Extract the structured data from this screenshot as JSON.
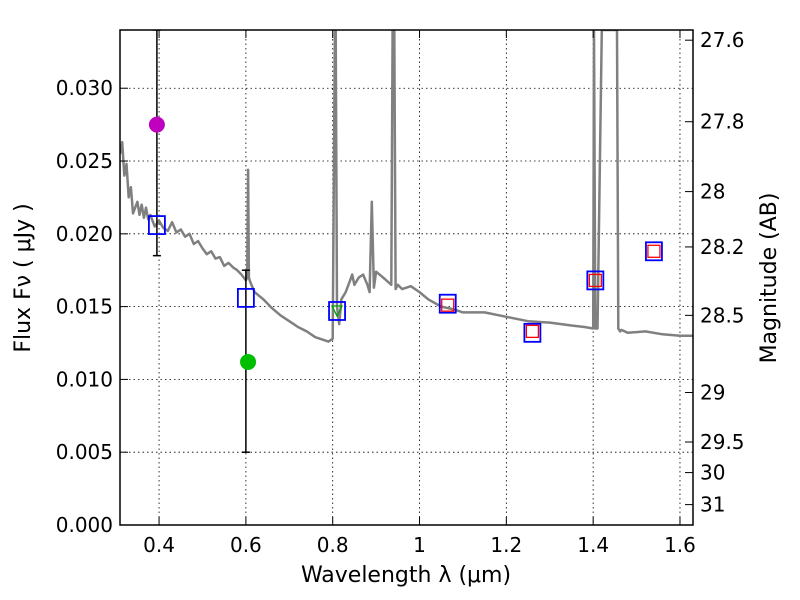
{
  "chart_data": {
    "type": "scatter",
    "xlabel": "Wavelength  λ (μm)",
    "ylabel": "Flux  Fν  ( μJy )",
    "y2label": "Magnitude (AB)",
    "xlim": [
      0.31,
      1.63
    ],
    "ylim": [
      0.0,
      0.034
    ],
    "x_ticks": [
      0.4,
      0.6,
      0.8,
      1.0,
      1.2,
      1.4,
      1.6
    ],
    "x_tick_labels": [
      "0.4",
      "0.6",
      "0.8",
      "1",
      "1.2",
      "1.4",
      "1.6"
    ],
    "y_ticks": [
      0.0,
      0.005,
      0.01,
      0.015,
      0.02,
      0.025,
      0.03
    ],
    "y_tick_labels": [
      "0.000",
      "0.005",
      "0.010",
      "0.015",
      "0.020",
      "0.025",
      "0.030"
    ],
    "y2_ticks": [
      {
        "label": "27.6",
        "flux": 0.0333
      },
      {
        "label": "27.8",
        "flux": 0.0277
      },
      {
        "label": "28",
        "flux": 0.0229
      },
      {
        "label": "28.2",
        "flux": 0.0191
      },
      {
        "label": "28.5",
        "flux": 0.0144
      },
      {
        "label": "29",
        "flux": 0.0091
      },
      {
        "label": "29.5",
        "flux": 0.0057
      },
      {
        "label": "30",
        "flux": 0.0036
      },
      {
        "label": "31",
        "flux": 0.0014
      }
    ],
    "grid": true,
    "colors": {
      "model": "#808080",
      "observed_square": "#0000ff",
      "model_square": "#ff0000",
      "magenta_point": "#bf00bf",
      "green_point": "#00bf00",
      "green_triangle": "#00a000",
      "errorbar": "#000000"
    },
    "series": [
      {
        "name": "model SED",
        "style": "line",
        "x": [
          0.31,
          0.315,
          0.32,
          0.325,
          0.33,
          0.335,
          0.34,
          0.345,
          0.35,
          0.355,
          0.36,
          0.365,
          0.37,
          0.375,
          0.38,
          0.39,
          0.4,
          0.41,
          0.42,
          0.43,
          0.44,
          0.45,
          0.46,
          0.47,
          0.48,
          0.49,
          0.5,
          0.51,
          0.52,
          0.53,
          0.54,
          0.55,
          0.56,
          0.57,
          0.58,
          0.59,
          0.6,
          0.603,
          0.605,
          0.607,
          0.61,
          0.62,
          0.64,
          0.66,
          0.68,
          0.7,
          0.72,
          0.74,
          0.76,
          0.78,
          0.79,
          0.8,
          0.805,
          0.807,
          0.81,
          0.815,
          0.82,
          0.83,
          0.84,
          0.845,
          0.85,
          0.86,
          0.87,
          0.88,
          0.885,
          0.89,
          0.895,
          0.9,
          0.92,
          0.935,
          0.938,
          0.942,
          0.945,
          0.95,
          0.96,
          0.98,
          1.0,
          1.02,
          1.05,
          1.08,
          1.1,
          1.15,
          1.2,
          1.25,
          1.3,
          1.35,
          1.38,
          1.4,
          1.402,
          1.405,
          1.41,
          1.42,
          1.44,
          1.455,
          1.458,
          1.462,
          1.465,
          1.48,
          1.52,
          1.56,
          1.6,
          1.63
        ],
        "y": [
          0.0255,
          0.0263,
          0.024,
          0.0248,
          0.0225,
          0.0232,
          0.0214,
          0.0218,
          0.0222,
          0.0213,
          0.022,
          0.0211,
          0.0218,
          0.021,
          0.0213,
          0.0205,
          0.0209,
          0.0204,
          0.0202,
          0.0208,
          0.0201,
          0.0203,
          0.0198,
          0.02,
          0.0193,
          0.0195,
          0.019,
          0.0186,
          0.0188,
          0.0183,
          0.0184,
          0.0178,
          0.018,
          0.0177,
          0.0175,
          0.0172,
          0.0168,
          0.017,
          0.0244,
          0.017,
          0.0167,
          0.016,
          0.0155,
          0.0149,
          0.0144,
          0.014,
          0.0136,
          0.0133,
          0.0129,
          0.0127,
          0.0126,
          0.0128,
          0.034,
          0.034,
          0.015,
          0.0138,
          0.0155,
          0.016,
          0.0168,
          0.0172,
          0.0165,
          0.017,
          0.0172,
          0.0165,
          0.016,
          0.0222,
          0.0163,
          0.0174,
          0.0169,
          0.0165,
          0.034,
          0.034,
          0.0162,
          0.0165,
          0.0162,
          0.0164,
          0.016,
          0.0155,
          0.015,
          0.0148,
          0.0146,
          0.0146,
          0.0143,
          0.014,
          0.0139,
          0.0137,
          0.0136,
          0.0135,
          0.034,
          0.0135,
          0.0135,
          0.034,
          0.034,
          0.034,
          0.0135,
          0.0133,
          0.0134,
          0.0132,
          0.0133,
          0.0131,
          0.013,
          0.013
        ]
      },
      {
        "name": "observed photometry",
        "style": "open-square",
        "x": [
          0.395,
          0.6,
          0.81,
          1.065,
          1.26,
          1.405,
          1.54
        ],
        "y": [
          0.0206,
          0.0156,
          0.0147,
          0.0152,
          0.0132,
          0.0168,
          0.0188
        ]
      },
      {
        "name": "model photometry",
        "style": "open-square-small",
        "x": [
          1.065,
          1.26,
          1.405,
          1.54
        ],
        "y": [
          0.0151,
          0.0133,
          0.0168,
          0.0188
        ]
      },
      {
        "name": "magenta point",
        "style": "filled-circle",
        "x": [
          0.395
        ],
        "y": [
          0.0275
        ]
      },
      {
        "name": "green point",
        "style": "filled-circle",
        "x": [
          0.605
        ],
        "y": [
          0.0112
        ]
      },
      {
        "name": "green marker",
        "style": "open-triangle",
        "x": [
          0.81
        ],
        "y": [
          0.0147
        ]
      }
    ],
    "errorbars": [
      {
        "x": 0.395,
        "y_low": 0.0185,
        "y_high": 0.034
      },
      {
        "x": 0.6,
        "y_low": 0.005,
        "y_high": 0.0175
      }
    ]
  }
}
